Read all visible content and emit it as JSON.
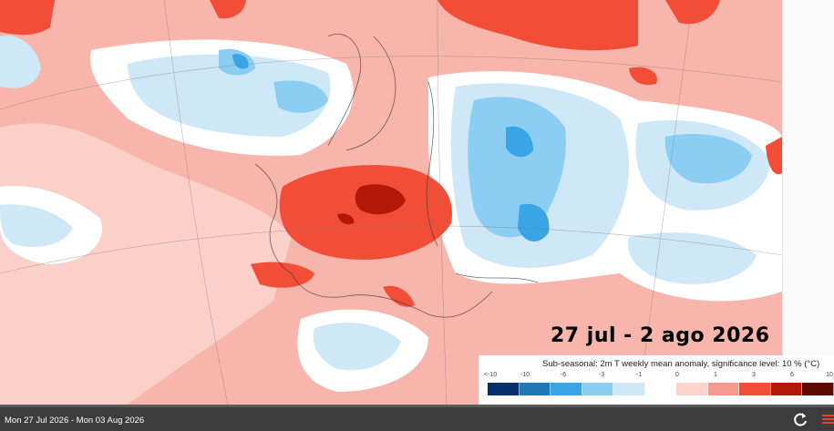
{
  "map": {
    "date_overlay": "27 jul - 2 ago 2026"
  },
  "legend": {
    "title": "Sub-seasonal: 2m T weekly mean anomaly, significance level: 10 % (°C)",
    "ticks": [
      "<-10",
      "-10",
      "-6",
      "-3",
      "-1",
      "0",
      "1",
      "3",
      "6",
      "10"
    ],
    "colors": [
      "#08306b",
      "#1f78b4",
      "#3aa5e6",
      "#8ccdf3",
      "#cfe8f8",
      "#ffffff",
      "#fcd3cd",
      "#f69a8e",
      "#f24e37",
      "#b21808",
      "#5d0a02"
    ]
  },
  "footer": {
    "period": "Mon 27 Jul 2026 - Mon 03 Aug 2026",
    "refresh_icon": "refresh-icon",
    "brand_icon": "ecmwf-logo-icon"
  }
}
